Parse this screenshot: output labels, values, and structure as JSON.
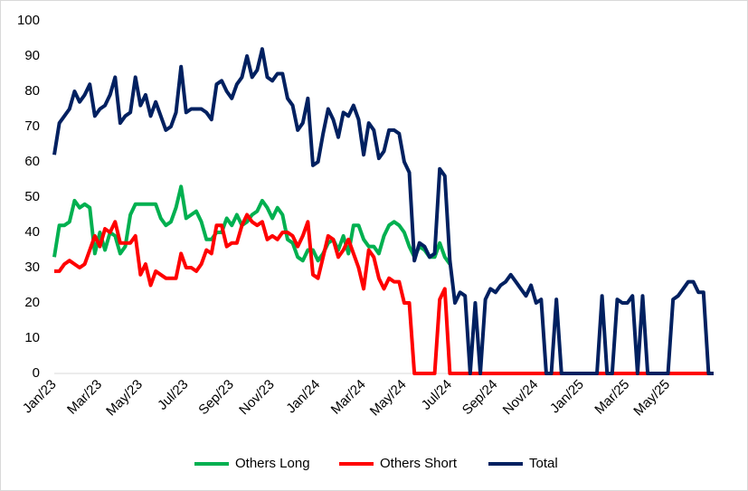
{
  "chart_data": {
    "type": "line",
    "categories": [
      "Jan/23",
      null,
      null,
      null,
      null,
      null,
      null,
      null,
      null,
      "Mar/23",
      null,
      null,
      null,
      null,
      null,
      null,
      null,
      "May/23",
      null,
      null,
      null,
      null,
      null,
      null,
      null,
      null,
      "Jul/23",
      null,
      null,
      null,
      null,
      null,
      null,
      null,
      null,
      "Sep/23",
      null,
      null,
      null,
      null,
      null,
      null,
      null,
      "Nov/23",
      null,
      null,
      null,
      null,
      null,
      null,
      null,
      null,
      "Jan/24",
      null,
      null,
      null,
      null,
      null,
      null,
      null,
      null,
      "Mar/24",
      null,
      null,
      null,
      null,
      null,
      null,
      null,
      "May/24",
      null,
      null,
      null,
      null,
      null,
      null,
      null,
      null,
      "Jul/24",
      null,
      null,
      null,
      null,
      null,
      null,
      null,
      null,
      "Sep/24",
      null,
      null,
      null,
      null,
      null,
      null,
      null,
      "Nov/24",
      null,
      null,
      null,
      null,
      null,
      null,
      null,
      null,
      "Jan/25",
      null,
      null,
      null,
      null,
      null,
      null,
      null,
      null,
      "Mar/25",
      null,
      null,
      null,
      null,
      null,
      null,
      null,
      "May/25",
      null,
      null,
      null,
      null,
      null,
      null,
      null,
      null,
      null
    ],
    "series": [
      {
        "name": "Others Long",
        "color": "#00b050",
        "values": [
          33,
          42,
          42,
          43,
          49,
          47,
          48,
          47,
          34,
          40,
          35,
          40,
          39,
          34,
          36,
          45,
          48,
          48,
          48,
          48,
          48,
          44,
          42,
          43,
          47,
          53,
          44,
          45,
          46,
          43,
          38,
          38,
          40,
          40,
          44,
          42,
          45,
          42,
          43,
          45,
          46,
          49,
          47,
          44,
          47,
          45,
          38,
          37,
          33,
          32,
          35,
          35,
          32,
          34,
          37,
          38,
          35,
          39,
          34,
          42,
          42,
          38,
          36,
          36,
          34,
          39,
          42,
          43,
          42,
          40,
          36,
          33,
          36,
          35,
          33,
          33,
          37,
          33,
          31,
          null,
          null,
          null,
          null,
          null,
          null,
          null,
          null,
          null,
          null,
          null,
          null,
          null,
          null,
          null,
          null,
          null,
          null,
          null,
          null,
          null,
          null,
          null,
          null,
          null,
          null,
          null,
          null,
          null,
          null,
          null,
          null,
          null,
          null,
          null,
          null,
          null,
          null,
          null,
          null,
          null,
          null,
          null,
          null,
          null,
          null,
          null,
          null,
          null,
          null,
          null,
          null
        ]
      },
      {
        "name": "Others Short",
        "color": "#ff0000",
        "values": [
          29,
          29,
          31,
          32,
          31,
          30,
          31,
          35,
          39,
          36,
          41,
          40,
          43,
          37,
          37,
          37,
          39,
          28,
          31,
          25,
          29,
          28,
          27,
          27,
          27,
          34,
          30,
          30,
          29,
          31,
          35,
          34,
          42,
          42,
          36,
          37,
          37,
          42,
          45,
          43,
          42,
          43,
          38,
          39,
          38,
          40,
          40,
          39,
          36,
          39,
          43,
          28,
          27,
          33,
          39,
          38,
          33,
          35,
          38,
          34,
          30,
          24,
          35,
          33,
          27,
          24,
          27,
          26,
          26,
          20,
          20,
          0,
          0,
          0,
          0,
          0,
          21,
          24,
          0,
          0,
          0,
          0,
          0,
          0,
          0,
          0,
          0,
          0,
          0,
          0,
          0,
          0,
          0,
          0,
          0,
          0,
          0,
          0,
          0,
          0,
          0,
          0,
          0,
          0,
          0,
          0,
          0,
          0,
          0,
          0,
          0,
          0,
          0,
          0,
          0,
          0,
          0,
          0,
          0,
          0,
          0,
          0,
          0,
          0,
          0,
          0,
          0,
          0,
          0,
          0,
          0
        ]
      },
      {
        "name": "Total",
        "color": "#002060",
        "values": [
          62,
          71,
          73,
          75,
          80,
          77,
          79,
          82,
          73,
          75,
          76,
          79,
          84,
          71,
          73,
          74,
          84,
          76,
          79,
          73,
          77,
          73,
          69,
          70,
          74,
          87,
          74,
          75,
          75,
          75,
          74,
          72,
          82,
          83,
          80,
          78,
          82,
          84,
          90,
          84,
          86,
          92,
          84,
          83,
          85,
          85,
          78,
          76,
          69,
          71,
          78,
          59,
          60,
          68,
          75,
          72,
          67,
          74,
          73,
          76,
          72,
          62,
          71,
          69,
          61,
          63,
          69,
          69,
          68,
          60,
          57,
          32,
          37,
          36,
          33,
          34,
          58,
          56,
          32,
          20,
          23,
          22,
          0,
          20,
          0,
          21,
          24,
          23,
          25,
          26,
          28,
          26,
          24,
          22,
          25,
          20,
          21,
          0,
          0,
          21,
          0,
          0,
          0,
          0,
          0,
          0,
          0,
          0,
          22,
          0,
          0,
          21,
          20,
          20,
          22,
          0,
          22,
          0,
          0,
          0,
          0,
          0,
          21,
          22,
          24,
          26,
          26,
          23,
          23,
          0,
          0
        ]
      }
    ],
    "ylim": [
      0,
      100
    ],
    "yticks": [
      0,
      10,
      20,
      30,
      40,
      50,
      60,
      70,
      80,
      90,
      100
    ],
    "grid": false,
    "legend": "bottom"
  }
}
